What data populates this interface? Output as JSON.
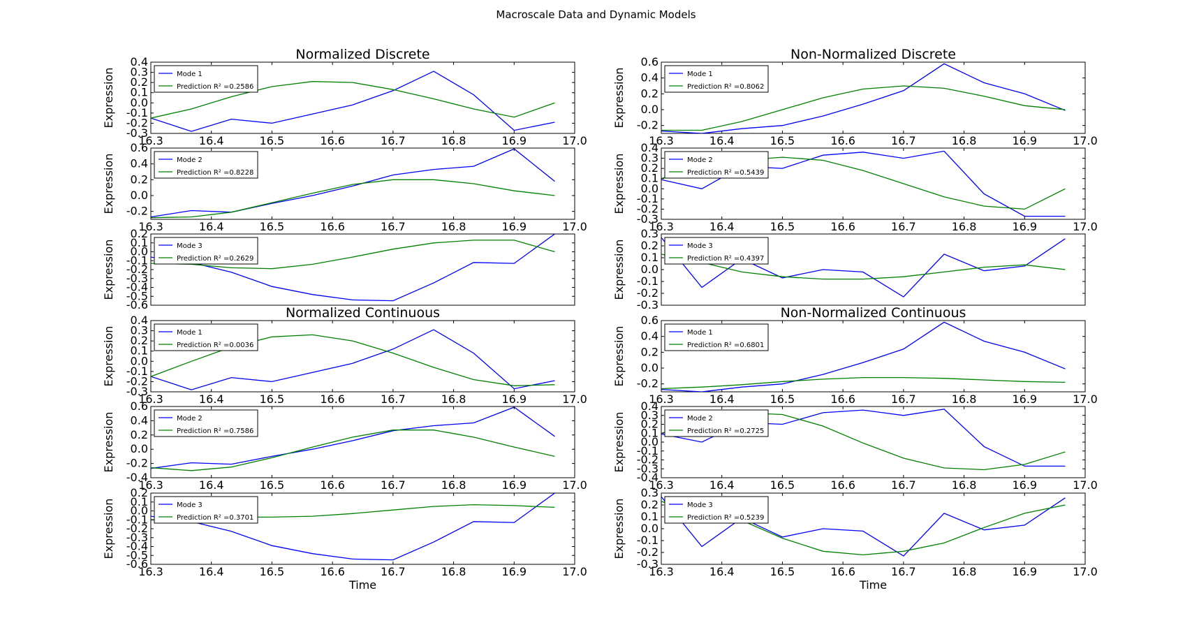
{
  "figure": {
    "title": "Macroscale Data and Dynamic Models"
  },
  "colors": {
    "mode": "#0000ff",
    "prediction": "#008000"
  },
  "chart_data": [
    {
      "type": "line",
      "title": "Normalized Discrete",
      "xlabel": "",
      "ylabel": "Expression",
      "xlim": [
        16.3,
        17.0
      ],
      "ylim": [
        -0.3,
        0.4
      ],
      "xticks": [
        "16.3",
        "16.4",
        "16.5",
        "16.6",
        "16.7",
        "16.8",
        "16.9",
        "17.0"
      ],
      "yticks": [
        "-0.3",
        "-0.2",
        "-0.1",
        "0.0",
        "0.1",
        "0.2",
        "0.3",
        "0.4"
      ],
      "x": [
        16.3,
        16.367,
        16.433,
        16.5,
        16.567,
        16.633,
        16.7,
        16.767,
        16.833,
        16.9,
        16.967
      ],
      "series": [
        {
          "name": "Mode 1",
          "values": [
            -0.15,
            -0.28,
            -0.16,
            -0.2,
            -0.11,
            -0.02,
            0.12,
            0.31,
            0.08,
            -0.27,
            -0.19
          ]
        },
        {
          "name": "Prediction R² =0.2586",
          "values": [
            -0.15,
            -0.06,
            0.06,
            0.16,
            0.21,
            0.2,
            0.13,
            0.04,
            -0.06,
            -0.14,
            0.0
          ]
        }
      ]
    },
    {
      "type": "line",
      "title": "",
      "xlabel": "",
      "ylabel": "Expression",
      "xlim": [
        16.3,
        17.0
      ],
      "ylim": [
        -0.3,
        0.6
      ],
      "xticks": [
        "16.3",
        "16.4",
        "16.5",
        "16.6",
        "16.7",
        "16.8",
        "16.9",
        "17.0"
      ],
      "yticks": [
        "-0.2",
        "0.0",
        "0.2",
        "0.4",
        "0.6"
      ],
      "x": [
        16.3,
        16.367,
        16.433,
        16.5,
        16.567,
        16.633,
        16.7,
        16.767,
        16.833,
        16.9,
        16.967
      ],
      "series": [
        {
          "name": "Mode 2",
          "values": [
            -0.27,
            -0.19,
            -0.21,
            -0.1,
            0.0,
            0.12,
            0.26,
            0.33,
            0.37,
            0.59,
            0.18
          ]
        },
        {
          "name": "Prediction R² =0.8228",
          "values": [
            -0.28,
            -0.27,
            -0.21,
            -0.09,
            0.03,
            0.14,
            0.2,
            0.2,
            0.15,
            0.06,
            0.0
          ]
        }
      ]
    },
    {
      "type": "line",
      "title": "",
      "xlabel": "",
      "ylabel": "Expression",
      "xlim": [
        16.3,
        17.0
      ],
      "ylim": [
        -0.6,
        0.2
      ],
      "xticks": [],
      "yticks": [
        "-0.6",
        "-0.5",
        "-0.4",
        "-0.3",
        "-0.2",
        "-0.1",
        "0.0",
        "0.1",
        "0.2"
      ],
      "x": [
        16.3,
        16.367,
        16.433,
        16.5,
        16.567,
        16.633,
        16.7,
        16.767,
        16.833,
        16.9,
        16.967
      ],
      "series": [
        {
          "name": "Mode 3",
          "values": [
            -0.06,
            -0.12,
            -0.23,
            -0.39,
            -0.48,
            -0.54,
            -0.55,
            -0.35,
            -0.12,
            -0.13,
            0.2
          ]
        },
        {
          "name": "Prediction R² =0.2629",
          "values": [
            -0.13,
            -0.14,
            -0.18,
            -0.19,
            -0.14,
            -0.06,
            0.03,
            0.1,
            0.13,
            0.13,
            0.0
          ]
        }
      ]
    },
    {
      "type": "line",
      "title": "Normalized Continuous",
      "xlabel": "",
      "ylabel": "Expression",
      "xlim": [
        16.3,
        17.0
      ],
      "ylim": [
        -0.3,
        0.4
      ],
      "xticks": [
        "16.3",
        "16.4",
        "16.5",
        "16.6",
        "16.7",
        "16.8",
        "16.9",
        "17.0"
      ],
      "yticks": [
        "-0.3",
        "-0.2",
        "-0.1",
        "0.0",
        "0.1",
        "0.2",
        "0.3",
        "0.4"
      ],
      "x": [
        16.3,
        16.367,
        16.433,
        16.5,
        16.567,
        16.633,
        16.7,
        16.767,
        16.833,
        16.9,
        16.967
      ],
      "series": [
        {
          "name": "Mode 1",
          "values": [
            -0.15,
            -0.28,
            -0.16,
            -0.2,
            -0.11,
            -0.02,
            0.12,
            0.31,
            0.08,
            -0.27,
            -0.19
          ]
        },
        {
          "name": "Prediction R² =0.0036",
          "values": [
            -0.15,
            0.0,
            0.14,
            0.24,
            0.26,
            0.2,
            0.08,
            -0.06,
            -0.18,
            -0.24,
            -0.23
          ]
        }
      ]
    },
    {
      "type": "line",
      "title": "",
      "xlabel": "",
      "ylabel": "Expression",
      "xlim": [
        16.3,
        17.0
      ],
      "ylim": [
        -0.4,
        0.6
      ],
      "xticks": [
        "16.3",
        "16.4",
        "16.5",
        "16.6",
        "16.7",
        "16.8",
        "16.9",
        "17.0"
      ],
      "yticks": [
        "-0.4",
        "-0.2",
        "0.0",
        "0.2",
        "0.4",
        "0.6"
      ],
      "x": [
        16.3,
        16.367,
        16.433,
        16.5,
        16.567,
        16.633,
        16.7,
        16.767,
        16.833,
        16.9,
        16.967
      ],
      "series": [
        {
          "name": "Mode 2",
          "values": [
            -0.27,
            -0.19,
            -0.21,
            -0.1,
            0.0,
            0.12,
            0.26,
            0.33,
            0.37,
            0.59,
            0.18
          ]
        },
        {
          "name": "Prediction R² =0.7586",
          "values": [
            -0.26,
            -0.3,
            -0.25,
            -0.12,
            0.03,
            0.17,
            0.27,
            0.27,
            0.17,
            0.03,
            -0.1
          ]
        }
      ]
    },
    {
      "type": "line",
      "title": "",
      "xlabel": "Time",
      "ylabel": "Expression",
      "xlim": [
        16.3,
        17.0
      ],
      "ylim": [
        -0.6,
        0.2
      ],
      "xticks": [
        "16.3",
        "16.4",
        "16.5",
        "16.6",
        "16.7",
        "16.8",
        "16.9",
        "17.0"
      ],
      "yticks": [
        "-0.6",
        "-0.5",
        "-0.4",
        "-0.3",
        "-0.2",
        "-0.1",
        "0.0",
        "0.1",
        "0.2"
      ],
      "x": [
        16.3,
        16.367,
        16.433,
        16.5,
        16.567,
        16.633,
        16.7,
        16.767,
        16.833,
        16.9,
        16.967
      ],
      "series": [
        {
          "name": "Mode 3",
          "values": [
            -0.06,
            -0.12,
            -0.23,
            -0.39,
            -0.48,
            -0.54,
            -0.55,
            -0.35,
            -0.12,
            -0.13,
            0.2
          ]
        },
        {
          "name": "Prediction R² =0.3701",
          "values": [
            -0.1,
            -0.1,
            -0.07,
            -0.07,
            -0.06,
            -0.03,
            0.01,
            0.05,
            0.07,
            0.06,
            0.04
          ]
        }
      ]
    },
    {
      "type": "line",
      "title": "Non-Normalized Discrete",
      "xlabel": "",
      "ylabel": "Expression",
      "xlim": [
        16.3,
        17.0
      ],
      "ylim": [
        -0.3,
        0.6
      ],
      "xticks": [
        "16.3",
        "16.4",
        "16.5",
        "16.6",
        "16.7",
        "16.8",
        "16.9",
        "17.0"
      ],
      "yticks": [
        "-0.2",
        "0.0",
        "0.2",
        "0.4",
        "0.6"
      ],
      "x": [
        16.3,
        16.367,
        16.433,
        16.5,
        16.567,
        16.633,
        16.7,
        16.767,
        16.833,
        16.9,
        16.967
      ],
      "series": [
        {
          "name": "Mode 1",
          "values": [
            -0.27,
            -0.3,
            -0.24,
            -0.2,
            -0.08,
            0.07,
            0.24,
            0.58,
            0.34,
            0.2,
            -0.01
          ]
        },
        {
          "name": "Prediction R² =0.8062",
          "values": [
            -0.26,
            -0.26,
            -0.15,
            0.0,
            0.15,
            0.26,
            0.3,
            0.27,
            0.17,
            0.05,
            0.0
          ]
        }
      ]
    },
    {
      "type": "line",
      "title": "",
      "xlabel": "",
      "ylabel": "Expression",
      "xlim": [
        16.3,
        17.0
      ],
      "ylim": [
        -0.3,
        0.4
      ],
      "xticks": [
        "16.3",
        "16.4",
        "16.5",
        "16.6",
        "16.7",
        "16.8",
        "16.9",
        "17.0"
      ],
      "yticks": [
        "-0.3",
        "-0.2",
        "-0.1",
        "0.0",
        "0.1",
        "0.2",
        "0.3",
        "0.4"
      ],
      "x": [
        16.3,
        16.367,
        16.433,
        16.5,
        16.567,
        16.633,
        16.7,
        16.767,
        16.833,
        16.9,
        16.967
      ],
      "series": [
        {
          "name": "Mode 2",
          "values": [
            0.09,
            0.0,
            0.22,
            0.2,
            0.33,
            0.36,
            0.3,
            0.37,
            -0.05,
            -0.27,
            -0.27
          ]
        },
        {
          "name": "Prediction R² =0.5439",
          "values": [
            0.1,
            0.22,
            0.28,
            0.31,
            0.28,
            0.18,
            0.05,
            -0.08,
            -0.17,
            -0.2,
            0.0
          ]
        }
      ]
    },
    {
      "type": "line",
      "title": "",
      "xlabel": "",
      "ylabel": "Expression",
      "xlim": [
        16.3,
        17.0
      ],
      "ylim": [
        -0.3,
        0.3
      ],
      "xticks": [],
      "yticks": [
        "-0.3",
        "-0.2",
        "-0.1",
        "0.0",
        "0.1",
        "0.2",
        "0.3"
      ],
      "x": [
        16.3,
        16.367,
        16.433,
        16.5,
        16.567,
        16.633,
        16.7,
        16.767,
        16.833,
        16.9,
        16.967
      ],
      "series": [
        {
          "name": "Mode 3",
          "values": [
            0.27,
            -0.15,
            0.09,
            -0.07,
            0.0,
            -0.02,
            -0.23,
            0.13,
            -0.01,
            0.03,
            0.26
          ]
        },
        {
          "name": "Prediction R² =0.4397",
          "values": [
            0.13,
            0.06,
            -0.02,
            -0.06,
            -0.08,
            -0.08,
            -0.06,
            -0.02,
            0.02,
            0.04,
            0.0
          ]
        }
      ]
    },
    {
      "type": "line",
      "title": "Non-Normalized Continuous",
      "xlabel": "",
      "ylabel": "Expression",
      "xlim": [
        16.3,
        17.0
      ],
      "ylim": [
        -0.3,
        0.6
      ],
      "xticks": [
        "16.3",
        "16.4",
        "16.5",
        "16.6",
        "16.7",
        "16.8",
        "16.9",
        "17.0"
      ],
      "yticks": [
        "-0.2",
        "0.0",
        "0.2",
        "0.4",
        "0.6"
      ],
      "x": [
        16.3,
        16.367,
        16.433,
        16.5,
        16.567,
        16.633,
        16.7,
        16.767,
        16.833,
        16.9,
        16.967
      ],
      "series": [
        {
          "name": "Mode 1",
          "values": [
            -0.27,
            -0.3,
            -0.24,
            -0.2,
            -0.08,
            0.07,
            0.24,
            0.58,
            0.34,
            0.2,
            -0.01
          ]
        },
        {
          "name": "Prediction R² =0.6801",
          "values": [
            -0.26,
            -0.24,
            -0.21,
            -0.17,
            -0.14,
            -0.12,
            -0.12,
            -0.13,
            -0.15,
            -0.17,
            -0.18
          ]
        }
      ]
    },
    {
      "type": "line",
      "title": "",
      "xlabel": "",
      "ylabel": "Expression",
      "xlim": [
        16.3,
        17.0
      ],
      "ylim": [
        -0.4,
        0.4
      ],
      "xticks": [
        "16.3",
        "16.4",
        "16.5",
        "16.6",
        "16.7",
        "16.8",
        "16.9",
        "17.0"
      ],
      "yticks": [
        "-0.4",
        "-0.3",
        "-0.2",
        "-0.1",
        "0.0",
        "0.1",
        "0.2",
        "0.3",
        "0.4"
      ],
      "x": [
        16.3,
        16.367,
        16.433,
        16.5,
        16.567,
        16.633,
        16.7,
        16.767,
        16.833,
        16.9,
        16.967
      ],
      "series": [
        {
          "name": "Mode 2",
          "values": [
            0.09,
            0.0,
            0.22,
            0.2,
            0.33,
            0.36,
            0.3,
            0.37,
            -0.05,
            -0.27,
            -0.27
          ]
        },
        {
          "name": "Prediction R² =0.2725",
          "values": [
            0.1,
            0.22,
            0.33,
            0.31,
            0.18,
            -0.01,
            -0.18,
            -0.29,
            -0.31,
            -0.25,
            -0.11
          ]
        }
      ]
    },
    {
      "type": "line",
      "title": "",
      "xlabel": "Time",
      "ylabel": "Expression",
      "xlim": [
        16.3,
        17.0
      ],
      "ylim": [
        -0.3,
        0.3
      ],
      "xticks": [
        "16.3",
        "16.4",
        "16.5",
        "16.6",
        "16.7",
        "16.8",
        "16.9",
        "17.0"
      ],
      "yticks": [
        "-0.3",
        "-0.2",
        "-0.1",
        "0.0",
        "0.1",
        "0.2",
        "0.3"
      ],
      "x": [
        16.3,
        16.367,
        16.433,
        16.5,
        16.567,
        16.633,
        16.7,
        16.767,
        16.833,
        16.9,
        16.967
      ],
      "series": [
        {
          "name": "Mode 3",
          "values": [
            0.27,
            -0.15,
            0.09,
            -0.07,
            0.0,
            -0.02,
            -0.23,
            0.13,
            -0.01,
            0.03,
            0.26
          ]
        },
        {
          "name": "Prediction R² =0.5239",
          "values": [
            0.23,
            0.13,
            0.07,
            -0.08,
            -0.19,
            -0.22,
            -0.19,
            -0.12,
            0.01,
            0.13,
            0.2
          ]
        }
      ]
    }
  ]
}
